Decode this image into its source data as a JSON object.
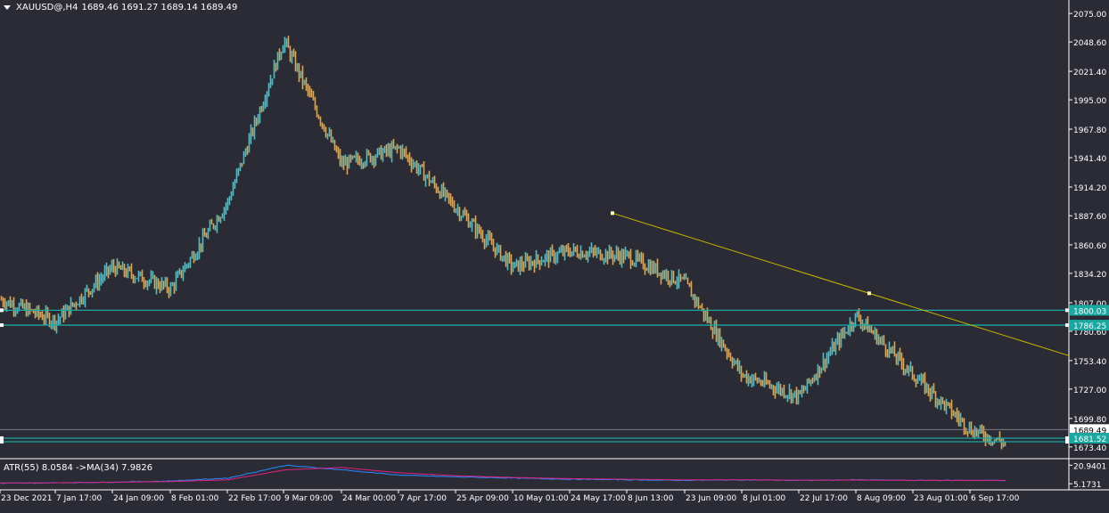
{
  "header": {
    "symbol": "XAUUSD@,H4",
    "ohlc": "1689.46 1691.27 1689.14 1689.49"
  },
  "indicator": {
    "label": "ATR(55) 8.0584 ->MA(34) 7.9826",
    "axis_ticks": [
      "20.9401",
      "5.1731"
    ]
  },
  "price_axis": {
    "ticks": [
      "2075.00",
      "2048.60",
      "2021.40",
      "1995.00",
      "1967.80",
      "1941.40",
      "1914.20",
      "1887.60",
      "1860.60",
      "1834.20",
      "1807.00",
      "1780.60",
      "1753.40",
      "1727.00",
      "1699.80",
      "1673.40"
    ],
    "labels": {
      "current": "1689.49",
      "level1": "1800.03",
      "level2": "1786.25",
      "level3": "1681.52"
    }
  },
  "time_axis": {
    "ticks": [
      "23 Dec 2021",
      "7 Jan 17:00",
      "24 Jan 09:00",
      "8 Feb 01:00",
      "22 Feb 17:00",
      "9 Mar 09:00",
      "24 Mar 00:00",
      "7 Apr 17:00",
      "25 Apr 09:00",
      "10 May 01:00",
      "24 May 17:00",
      "8 Jun 13:00",
      "23 Jun 09:00",
      "8 Jul 01:00",
      "22 Jul 17:00",
      "8 Aug 09:00",
      "23 Aug 01:00",
      "6 Sep 17:00"
    ]
  },
  "colors": {
    "background": "#2b2b36",
    "bull": "#37c8d2",
    "bear": "#f3a32b",
    "level_line": "#1aa8a0",
    "trendline": "#c8b400",
    "atr": "#2a8bff",
    "atr_ma": "#e0207e",
    "axis_text": "#ffffff"
  },
  "chart_data": [
    {
      "type": "line",
      "name": "XAUUSD H4 price (close, approx.)",
      "x": [
        "23 Dec 2021",
        "7 Jan 17:00",
        "24 Jan 09:00",
        "8 Feb 01:00",
        "22 Feb 17:00",
        "9 Mar 09:00",
        "24 Mar 00:00",
        "7 Apr 17:00",
        "25 Apr 09:00",
        "10 May 01:00",
        "24 May 17:00",
        "8 Jun 13:00",
        "23 Jun 09:00",
        "8 Jul 01:00",
        "22 Jul 17:00",
        "8 Aug 09:00",
        "23 Aug 01:00",
        "6 Sep 17:00"
      ],
      "values": [
        1810,
        1790,
        1840,
        1820,
        1900,
        2050,
        1935,
        1950,
        1895,
        1840,
        1855,
        1850,
        1825,
        1740,
        1720,
        1795,
        1740,
        1689.49
      ],
      "ylim": [
        1665,
        2085
      ],
      "levels": [
        1800.03,
        1786.25,
        1681.52,
        1678.2
      ],
      "trendline": {
        "from": {
          "x": "1 Jun 2022",
          "y": 1890
        },
        "to": {
          "x": "16 Sep 2022",
          "y": 1758
        }
      },
      "grid": false
    },
    {
      "type": "line",
      "name": "ATR(55) with MA(34)",
      "series": [
        {
          "name": "ATR(55)",
          "values": [
            5.5,
            6.0,
            6.5,
            7.5,
            10.0,
            20.9,
            17.0,
            12.5,
            11.0,
            10.0,
            9.0,
            8.5,
            8.0,
            8.5,
            8.0,
            8.5,
            8.0,
            8.06
          ]
        },
        {
          "name": "MA(34)",
          "values": [
            5.8,
            6.0,
            6.5,
            7.0,
            8.5,
            17.0,
            19.0,
            14.5,
            12.0,
            10.5,
            9.5,
            9.0,
            8.5,
            8.5,
            8.2,
            8.3,
            8.0,
            7.98
          ]
        }
      ],
      "ylim": [
        3,
        25
      ]
    }
  ]
}
